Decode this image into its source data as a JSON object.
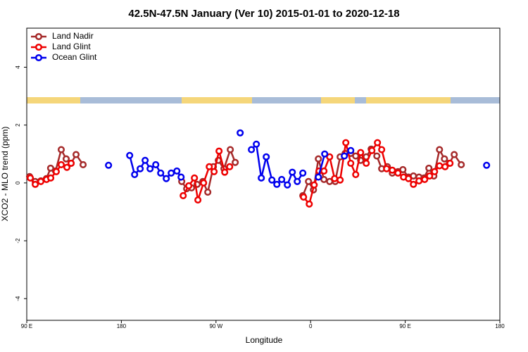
{
  "chart_data": {
    "type": "line",
    "title": "42.5N-47.5N January (Ver 10)   2015-01-01 to 2020-12-18",
    "x_label": "Longitude",
    "y_label": "XCO2 - MLO trend (ppm)",
    "xlim": [
      -270,
      180
    ],
    "xticks": [
      {
        "value": -270,
        "label": "90 E"
      },
      {
        "value": -180,
        "label": "180"
      },
      {
        "value": -90,
        "label": "90 W"
      },
      0,
      {
        "value": 90,
        "label": "90 E"
      },
      {
        "value": 180,
        "label": "180"
      }
    ],
    "ylim": [
      -4.75,
      5.35
    ],
    "yticks": [
      -4,
      -2,
      0,
      2,
      4
    ],
    "legend": "top-left",
    "series": [
      {
        "name": "Land Nadir",
        "color": "#a52a2a",
        "x": [
          -267.3,
          -262,
          -256.6,
          -251.3,
          -247.3,
          -242.6,
          -237.2,
          -232.5,
          -227.8,
          -223.1,
          -216.4,
          null,
          -122.6,
          -117.9,
          -113.2,
          -107.9,
          -102.5,
          -97.8,
          -92.5,
          -87.8,
          -82.4,
          -76.4,
          -71.7,
          null,
          -7.4,
          -2,
          2.7,
          7.4,
          12.7,
          18.1,
          23.4,
          28.1,
          32.8,
          38.2,
          42.9,
          47.6,
          52.9,
          57.6,
          63,
          67.6,
          73,
          77.7,
          83.1,
          87.8,
          93.1,
          97.8,
          103.1,
          107.8,
          112.5,
          117.2,
          122.6,
          127.3,
          132,
          136.6,
          143.3
        ],
        "values": [
          0.22,
          0.05,
          0.07,
          0.15,
          0.51,
          0.41,
          1.15,
          0.83,
          0.68,
          0.98,
          0.63,
          null,
          0.05,
          -0.2,
          -0.17,
          -0.05,
          0.05,
          -0.32,
          0.56,
          0.78,
          0.49,
          1.15,
          0.71,
          null,
          -0.44,
          0.05,
          -0.24,
          0.83,
          0.12,
          0.05,
          0.05,
          0.9,
          1.02,
          1.02,
          0.93,
          0.78,
          0.9,
          1.17,
          0.93,
          0.49,
          0.56,
          0.34,
          0.39,
          0.46,
          0.2,
          0.24,
          0.2,
          0.17,
          0.51,
          0.24,
          1.15,
          0.83,
          0.68,
          0.98,
          0.63
        ]
      },
      {
        "name": "Land Glint",
        "color": "#ee0000",
        "x": [
          -266.6,
          -261.9,
          -256.6,
          -251.2,
          -247.2,
          -241.9,
          -237.2,
          -231.8,
          -227.8,
          null,
          -121.2,
          -115.9,
          -110.5,
          -107.2,
          -101.8,
          -96.4,
          -91.8,
          -87.1,
          -81.7,
          -77,
          null,
          -6.7,
          -1.3,
          3.4,
          8,
          12.7,
          18.1,
          22.8,
          28.1,
          33.5,
          38.2,
          42.9,
          47.6,
          52.9,
          58.3,
          63.6,
          67.6,
          72.3,
          77.7,
          83.1,
          88.4,
          93.1,
          97.8,
          103.1,
          108.5,
          113.2,
          117.9,
          122.6,
          127.9,
          132.6
        ],
        "values": [
          0.17,
          -0.05,
          0.05,
          0.12,
          0.17,
          0.39,
          0.63,
          0.54,
          0.68,
          null,
          -0.44,
          -0.1,
          0.17,
          -0.59,
          0,
          0.56,
          0.39,
          1.1,
          0.37,
          0.56,
          null,
          -0.49,
          -0.73,
          -0.07,
          0.41,
          0.41,
          0.9,
          0.15,
          0.1,
          1.39,
          0.68,
          0.29,
          1.05,
          0.68,
          1.12,
          1.39,
          1.15,
          0.49,
          0.44,
          0.34,
          0.2,
          0.15,
          -0.05,
          0.07,
          0.12,
          0.24,
          0.39,
          0.59,
          0.56,
          0.68
        ]
      },
      {
        "name": "Ocean Glint",
        "color": "#0000ee",
        "x": [
          -192.2,
          null,
          -172.1,
          -167.4,
          -162.1,
          -157.4,
          -152.7,
          -147.3,
          -142.6,
          -137.3,
          -132.6,
          -127.2,
          -123.2,
          null,
          -67,
          null,
          -56.3,
          -51.6,
          -46.9,
          -42.2,
          -36.8,
          -32.1,
          -27.5,
          -22.1,
          -17.4,
          -12.7,
          -7.4,
          null,
          7.4,
          13.4,
          null,
          32.1,
          38.2,
          null,
          167.4
        ],
        "values": [
          0.61,
          null,
          0.95,
          0.29,
          0.49,
          0.78,
          0.49,
          0.63,
          0.34,
          0.15,
          0.34,
          0.41,
          0.2,
          null,
          1.73,
          null,
          1.15,
          1.34,
          0.17,
          0.9,
          0.1,
          -0.05,
          0.12,
          -0.07,
          0.37,
          0.05,
          0.34,
          null,
          0.2,
          1.0,
          null,
          0.93,
          1.12,
          null,
          0.61
        ]
      }
    ]
  }
}
